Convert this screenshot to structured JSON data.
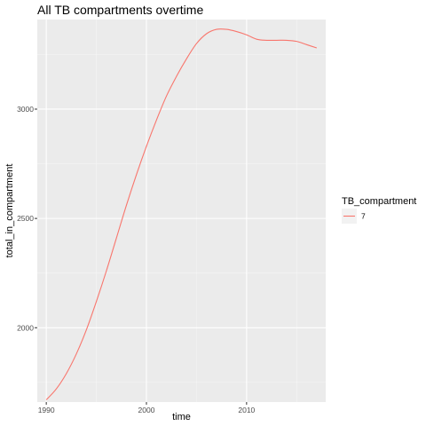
{
  "chart_data": {
    "type": "line",
    "title": "All TB compartments overtime",
    "xlabel": "time",
    "ylabel": "total_in_compartment",
    "xlim": [
      1989.1,
      2017.9
    ],
    "ylim": [
      1660,
      3410
    ],
    "x_ticks": [
      1990,
      2000,
      2010
    ],
    "y_ticks": [
      2000,
      2500,
      3000
    ],
    "x_minor_ticks": [
      1995,
      2005,
      2015
    ],
    "y_minor_ticks": [
      1750,
      2250,
      2750,
      3250
    ],
    "grid": true,
    "legend_position": "right",
    "legend": {
      "title": "TB_compartment",
      "entries": [
        {
          "label": "7",
          "color": "#F8766D"
        }
      ]
    },
    "series": [
      {
        "name": "7",
        "color": "#F8766D",
        "x": [
          1990,
          1991,
          1992,
          1993,
          1994,
          1995,
          1996,
          1997,
          1998,
          1999,
          2000,
          2001,
          2002,
          2003,
          2004,
          2005,
          2006,
          2007,
          2008,
          2009,
          2010,
          2011,
          2012,
          2013,
          2014,
          2015,
          2016,
          2017
        ],
        "y": [
          1670,
          1720,
          1790,
          1880,
          1990,
          2120,
          2260,
          2410,
          2560,
          2700,
          2830,
          2950,
          3060,
          3150,
          3230,
          3300,
          3345,
          3365,
          3365,
          3355,
          3340,
          3320,
          3315,
          3315,
          3315,
          3310,
          3295,
          3280
        ]
      }
    ]
  }
}
